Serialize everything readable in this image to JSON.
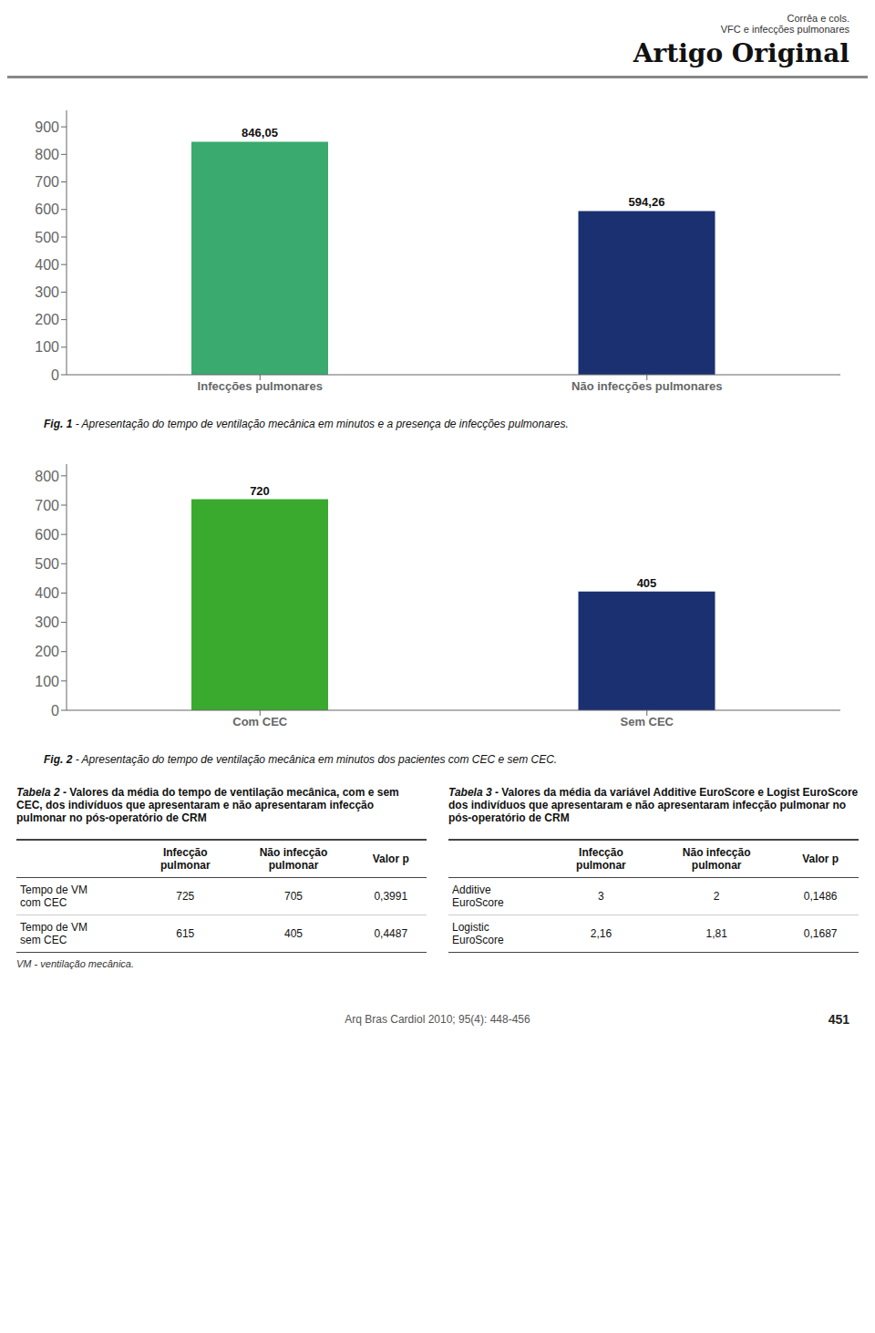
{
  "chart_data": [
    {
      "type": "bar",
      "title": "Fig. 1",
      "subtitle": " - Apresentação do tempo de ventilação mecânica em minutos e a presença de infecções pulmonares.",
      "annotations": [
        "Corrêa e cols.",
        "VFC e infecções pulmonares",
        "Artigo Original"
      ],
      "categories": [
        "Infecções pulmonares",
        "Não infecções pulmonares"
      ],
      "values": [
        846.05,
        594.26
      ],
      "value_labels": [
        "846,05",
        "594,26"
      ],
      "colors": [
        "#3aaa6e",
        "#1b3070"
      ],
      "ylim": [
        0,
        960
      ],
      "yticks": [
        0,
        100,
        200,
        300,
        400,
        500,
        600,
        700,
        800,
        900
      ],
      "grid": false,
      "data_labels": true
    },
    {
      "type": "bar",
      "title": "Fig. 2",
      "subtitle": " - Apresentação do tempo de ventilação mecânica em minutos dos pacientes com CEC e sem CEC.",
      "annotations": [
        "Arq Bras Cardiol 2010; 95(4): 448-456",
        "451"
      ],
      "categories": [
        "Com CEC",
        "Sem CEC"
      ],
      "values": [
        720,
        405
      ],
      "colors": [
        "#3aaa2e",
        "#1b3070"
      ],
      "ylim": [
        0,
        840
      ],
      "yticks": [
        0,
        100,
        200,
        300,
        400,
        500,
        600,
        700,
        800
      ],
      "grid": false,
      "data_labels": true
    },
    {
      "type": "table",
      "title": "Tabela 2",
      "subtitle": " - Valores da média do tempo de ventilação mecânica, com e sem CEC, dos indivíduos que apresentaram e não apresentaram infecção pulmonar no pós-operatório de CRM",
      "annotations": [
        "VM - ventilação mecânica."
      ],
      "categories": [
        "Tempo de VM\ncom CEC",
        "Tempo de VM\nsem CEC"
      ],
      "series": [
        {
          "name": "Infecção\npulmonar",
          "values": [
            725,
            615
          ]
        },
        {
          "name": "Não infecção\npulmonar",
          "values": [
            705,
            405
          ]
        },
        {
          "name": "Valor p",
          "values": [
            0.3991,
            0.4487
          ],
          "value_labels": [
            "0,3991",
            "0,4487"
          ]
        }
      ]
    },
    {
      "type": "table",
      "title": "Tabela 3",
      "subtitle": " - Valores da média da variável Additive EuroScore e Logist EuroScore dos indivíduos que apresentaram e não apresentaram infecção pulmonar no pós-operatório de CRM",
      "categories": [
        "Additive\nEuroScore",
        "Logistic\nEuroScore"
      ],
      "series": [
        {
          "name": "Infecção\npulmonar",
          "values": [
            3,
            2.16
          ],
          "value_labels": [
            "3",
            "2,16"
          ]
        },
        {
          "name": "Não infecção\npulmonar",
          "values": [
            2,
            1.81
          ],
          "value_labels": [
            "2",
            "1,81"
          ]
        },
        {
          "name": "Valor p",
          "values": [
            0.1486,
            0.1687
          ],
          "value_labels": [
            "0,1486",
            "0,1687"
          ]
        }
      ]
    }
  ]
}
